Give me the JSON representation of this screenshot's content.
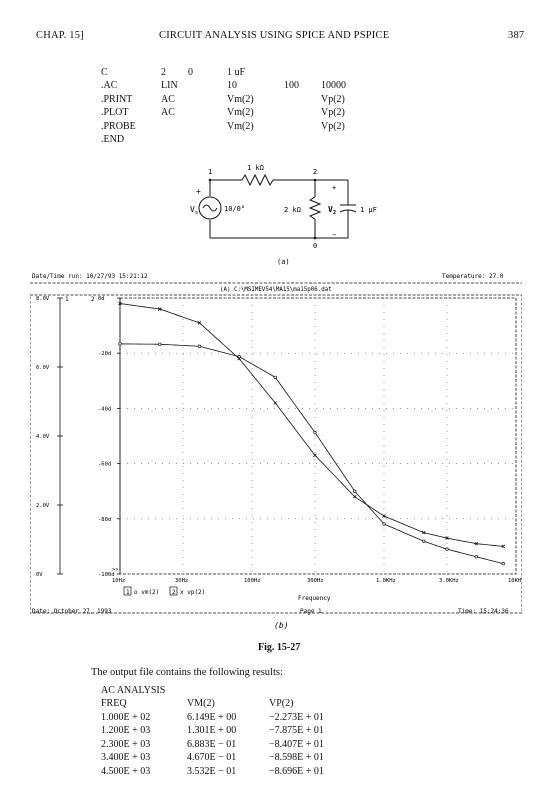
{
  "header": {
    "chapter": "CHAP. 15]",
    "title": "CIRCUIT ANALYSIS USING SPICE AND PSPICE",
    "page_number": "387"
  },
  "netlist": [
    [
      "C",
      "2",
      "0",
      "1 uF",
      "",
      ""
    ],
    [
      ".AC",
      "LIN",
      "",
      "10",
      "100",
      "10000"
    ],
    [
      ".PRINT",
      "AC",
      "",
      "Vm(2)",
      "",
      "Vp(2)"
    ],
    [
      ".PLOT",
      "AC",
      "",
      "Vm(2)",
      "",
      "Vp(2)"
    ],
    [
      ".PROBE",
      "",
      "",
      "Vm(2)",
      "",
      "Vp(2)"
    ],
    [
      ".END",
      "",
      "",
      "",
      "",
      ""
    ]
  ],
  "circuit": {
    "node1": "1",
    "node2": "2",
    "node0": "0",
    "r1_label": "1 kΩ",
    "r2_label": "2 kΩ",
    "cap_label": "1 μF",
    "source_label": "V",
    "source_sub": "s",
    "source_value": "10/0°",
    "vout_label": "V",
    "vout_sub": "2",
    "plus": "+",
    "minus": "−",
    "caption": "(a)"
  },
  "probe": {
    "datetime": "Date/Time run: 10/27/93 15:21:12",
    "temperature": "Temperature: 27.0",
    "file": "(A) C:\\MSIMEV54\\MA15\\ma15p06.dat",
    "footer_date": "Date: October 27, 1993",
    "footer_page": "Page 1",
    "footer_time": "Time: 15:24:36",
    "caption": "(b)",
    "xlabel": "Frequency",
    "legend_1": "1",
    "legend_1_text": "o vm(2)",
    "legend_2": "2",
    "legend_2_text": "x vp(2)",
    "axis_marker_1": "1",
    "axis_marker_2": "2",
    "axis_marker_3": ">>"
  },
  "chart_data": {
    "type": "line",
    "xlabel": "Frequency",
    "x_scale": "log",
    "xlim": [
      10,
      10000
    ],
    "x_ticks": [
      "10Hz",
      "30Hz",
      "100Hz",
      "300Hz",
      "1.0KHz",
      "3.0KHz",
      "10KHz"
    ],
    "y1_ticks": [
      "8.0V",
      "6.0V",
      "4.0V",
      "2.0V",
      "0V"
    ],
    "y1lim": [
      0,
      8
    ],
    "y2_ticks": [
      "0d",
      "-20d",
      "-40d",
      "-60d",
      "-80d",
      "-100d"
    ],
    "y2lim": [
      -100,
      0
    ],
    "series": [
      {
        "name": "vm(2)",
        "axis": "left",
        "marker": "o",
        "x": [
          10,
          20,
          40,
          80,
          150,
          300,
          600,
          1000,
          2000,
          3000,
          5000,
          8000
        ],
        "y": [
          6.67,
          6.66,
          6.6,
          6.3,
          5.7,
          4.1,
          2.4,
          1.45,
          0.95,
          0.72,
          0.5,
          0.3
        ]
      },
      {
        "name": "vp(2)",
        "axis": "right",
        "marker": "x",
        "x": [
          10,
          20,
          40,
          80,
          150,
          300,
          600,
          1000,
          2000,
          3000,
          5000,
          8000
        ],
        "y": [
          -2,
          -4,
          -9,
          -22,
          -38,
          -57,
          -72,
          -79,
          -85,
          -87,
          -89,
          -90
        ]
      }
    ],
    "grid": true
  },
  "figure_caption": "Fig. 15-27",
  "output_intro": "The output file contains the following results:",
  "results": {
    "title": "AC ANALYSIS",
    "columns": [
      "FREQ",
      "VM(2)",
      "VP(2)"
    ],
    "rows": [
      [
        "1.000E + 02",
        "6.149E + 00",
        "−2.273E + 01"
      ],
      [
        "1.200E + 03",
        "1.301E + 00",
        "−7.875E + 01"
      ],
      [
        "2.300E + 03",
        "6.883E − 01",
        "−8.407E + 01"
      ],
      [
        "3.400E + 03",
        "4.670E − 01",
        "−8.598E + 01"
      ],
      [
        "4.500E + 03",
        "3.532E − 01",
        "−8.696E + 01"
      ]
    ]
  }
}
